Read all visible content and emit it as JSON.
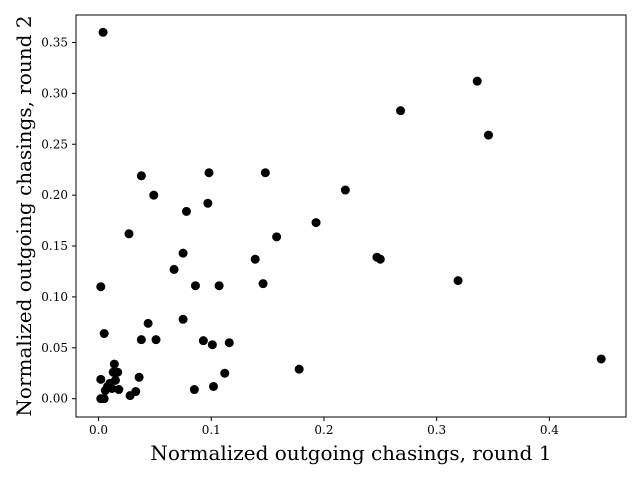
{
  "chart_data": {
    "type": "scatter",
    "title": "",
    "xlabel": "Normalized outgoing chasings, round 1",
    "ylabel": "Normalized outgoing chasings, round 2",
    "xlim": [
      -0.02,
      0.468
    ],
    "ylim": [
      -0.018,
      0.377
    ],
    "x_ticks": [
      0.0,
      0.1,
      0.2,
      0.3,
      0.4
    ],
    "x_tick_labels": [
      "0.0",
      "0.1",
      "0.2",
      "0.3",
      "0.4"
    ],
    "y_ticks": [
      0.0,
      0.05,
      0.1,
      0.15,
      0.2,
      0.25,
      0.3,
      0.35
    ],
    "y_tick_labels": [
      "0.00",
      "0.05",
      "0.10",
      "0.15",
      "0.20",
      "0.25",
      "0.30",
      "0.35"
    ],
    "grid": false,
    "marker_color": "#000000",
    "series": [
      {
        "points": [
          [
            0.004,
            0.36
          ],
          [
            0.336,
            0.312
          ],
          [
            0.268,
            0.283
          ],
          [
            0.346,
            0.259
          ],
          [
            0.148,
            0.222
          ],
          [
            0.098,
            0.222
          ],
          [
            0.038,
            0.219
          ],
          [
            0.219,
            0.205
          ],
          [
            0.049,
            0.2
          ],
          [
            0.097,
            0.192
          ],
          [
            0.078,
            0.184
          ],
          [
            0.193,
            0.173
          ],
          [
            0.027,
            0.162
          ],
          [
            0.158,
            0.159
          ],
          [
            0.075,
            0.143
          ],
          [
            0.247,
            0.139
          ],
          [
            0.25,
            0.137
          ],
          [
            0.139,
            0.137
          ],
          [
            0.067,
            0.127
          ],
          [
            0.319,
            0.116
          ],
          [
            0.146,
            0.113
          ],
          [
            0.086,
            0.111
          ],
          [
            0.107,
            0.111
          ],
          [
            0.002,
            0.11
          ],
          [
            0.075,
            0.078
          ],
          [
            0.044,
            0.074
          ],
          [
            0.005,
            0.064
          ],
          [
            0.038,
            0.058
          ],
          [
            0.051,
            0.058
          ],
          [
            0.093,
            0.057
          ],
          [
            0.116,
            0.055
          ],
          [
            0.101,
            0.053
          ],
          [
            0.446,
            0.039
          ],
          [
            0.014,
            0.034
          ],
          [
            0.178,
            0.029
          ],
          [
            0.013,
            0.026
          ],
          [
            0.017,
            0.026
          ],
          [
            0.112,
            0.025
          ],
          [
            0.036,
            0.021
          ],
          [
            0.002,
            0.019
          ],
          [
            0.015,
            0.018
          ],
          [
            0.01,
            0.015
          ],
          [
            0.008,
            0.012
          ],
          [
            0.102,
            0.012
          ],
          [
            0.012,
            0.01
          ],
          [
            0.085,
            0.009
          ],
          [
            0.018,
            0.009
          ],
          [
            0.006,
            0.008
          ],
          [
            0.033,
            0.007
          ],
          [
            0.028,
            0.003
          ],
          [
            0.002,
            0.0
          ],
          [
            0.005,
            0.0
          ]
        ]
      }
    ]
  }
}
